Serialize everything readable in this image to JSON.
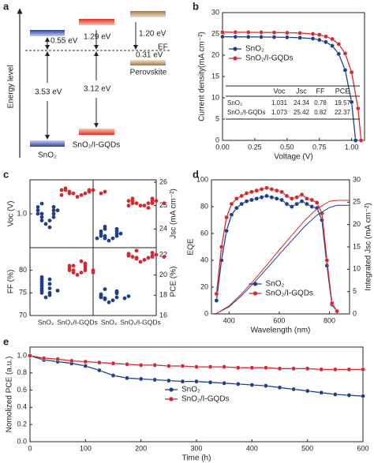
{
  "diagram": {
    "label": "a",
    "ylabel": "Energy level",
    "gap_sno2_cb": "0.55 eV",
    "gap_gqd_cb": "1.29 eV",
    "gap_pvk_cb": "1.20 eV",
    "gap_pvk_vb": "0.31 eV",
    "fermi_label": "EF",
    "bandgap_sno2": "3.53 eV",
    "bandgap_gqd": "3.12 eV",
    "name_sno2": "SnO₂",
    "name_gqd": "SnO₂/I-GQDs",
    "name_pvk": "Perovskite"
  },
  "chart_data": [
    {
      "type": "line",
      "label": "b",
      "xlabel": "Voltage (V)",
      "ylabel": "Current density(mA cm⁻²)",
      "xlim": [
        0,
        1.1
      ],
      "xticks": [
        {
          "value": 0,
          "label": "0.00"
        },
        0.25,
        {
          "value": 0.5,
          "label": "0.50"
        },
        0.75,
        {
          "value": 1,
          "label": "1.00"
        }
      ],
      "ylim": [
        0,
        30
      ],
      "yticks": [
        0,
        5,
        10,
        15,
        20,
        25,
        30
      ],
      "legend": "center left",
      "series": [
        {
          "name": "SnO₂",
          "color": "#1f3f8c",
          "x": [
            0,
            0.1,
            0.2,
            0.3,
            0.4,
            0.5,
            0.6,
            0.7,
            0.75,
            0.8,
            0.85,
            0.9,
            0.95,
            1.0,
            1.031
          ],
          "values": [
            24.34,
            24.32,
            24.3,
            24.28,
            24.25,
            24.2,
            24.1,
            23.9,
            23.6,
            23.1,
            22.2,
            20.3,
            16.5,
            9.0,
            0
          ]
        },
        {
          "name": "SnO₂/I-GQDs",
          "color": "#d42a2f",
          "x": [
            0,
            0.1,
            0.2,
            0.3,
            0.4,
            0.5,
            0.6,
            0.7,
            0.75,
            0.8,
            0.85,
            0.9,
            0.95,
            1.0,
            1.05,
            1.073
          ],
          "values": [
            25.42,
            25.4,
            25.38,
            25.36,
            25.33,
            25.28,
            25.2,
            25.0,
            24.8,
            24.4,
            23.8,
            22.6,
            20.4,
            16.0,
            7.5,
            0
          ]
        }
      ],
      "table": {
        "columns": [
          "Voc",
          "Jsc",
          "FF",
          "PCE"
        ],
        "rows": [
          [
            "SnO₂",
            1.031,
            24.34,
            0.78,
            19.57
          ],
          [
            "SnO₂/I-GQDs",
            1.073,
            25.42,
            0.82,
            22.37
          ]
        ]
      }
    },
    {
      "type": "dot-grid",
      "label": "c",
      "categories": [
        "SnO₂",
        "SnO₂/I-GQDs"
      ],
      "panels": [
        {
          "position": "top left",
          "ylabel": "Voc (V)",
          "ylim": [
            0.9,
            1.1
          ],
          "yticks": [
            {
              "value": 1,
              "label": "1.0"
            }
          ],
          "series": [
            {
              "color": "#1f3f8c",
              "values": [
                0.97,
                0.98,
                0.98,
                0.99,
                0.99,
                1.0,
                1.0,
                1.0,
                1.01,
                1.01,
                1.01,
                1.02,
                1.02,
                1.03,
                0.96
              ]
            },
            {
              "color": "#d42a2f",
              "values": [
                1.05,
                1.055,
                1.06,
                1.06,
                1.06,
                1.065,
                1.065,
                1.07,
                1.07,
                1.07,
                1.07,
                1.075,
                1.06,
                1.055,
                1.065
              ]
            }
          ]
        },
        {
          "position": "top right",
          "ylabel": "Jsc (mA cm⁻²)",
          "ylim": [
            23.2,
            26.1
          ],
          "yticks": [
            24,
            25,
            26
          ],
          "series": [
            {
              "color": "#1f3f8c",
              "values": [
                23.5,
                23.6,
                23.6,
                23.7,
                23.7,
                23.7,
                23.8,
                23.8,
                23.8,
                23.9,
                23.9,
                24.0,
                24.0,
                24.1,
                23.6
              ]
            },
            {
              "color": "#d42a2f",
              "values": [
                25.0,
                25.0,
                25.1,
                25.1,
                25.1,
                25.1,
                25.2,
                25.2,
                25.2,
                25.2,
                25.3,
                25.3,
                25.0,
                24.9,
                25.1
              ]
            }
          ]
        },
        {
          "position": "bottom left",
          "ylabel": "FF (%)",
          "ylim": [
            70,
            85
          ],
          "yticks": [
            70,
            75,
            80
          ],
          "series": [
            {
              "color": "#1f3f8c",
              "values": [
                74,
                74.5,
                75,
                75,
                75.5,
                76,
                76,
                76.5,
                77,
                77,
                77.5,
                78,
                78,
                78.5,
                75.5
              ]
            },
            {
              "color": "#d42a2f",
              "values": [
                79,
                79.5,
                79.5,
                80,
                80,
                80,
                80.5,
                80.5,
                81,
                81,
                81,
                81.5,
                82,
                80,
                79.5
              ]
            }
          ]
        },
        {
          "position": "bottom right",
          "ylabel": "PCE (%)",
          "ylim": [
            16,
            22.7
          ],
          "yticks": [
            16,
            18,
            20,
            22
          ],
          "series": [
            {
              "color": "#1f3f8c",
              "values": [
                17.3,
                17.5,
                17.6,
                17.7,
                17.8,
                17.8,
                17.9,
                18.0,
                18.1,
                18.2,
                18.3,
                18.4,
                18.6,
                17.7,
                17.9
              ]
            },
            {
              "color": "#d42a2f",
              "values": [
                21.3,
                21.5,
                21.6,
                21.7,
                21.7,
                21.8,
                21.8,
                21.9,
                21.9,
                22.0,
                22.0,
                22.1,
                22.2,
                22.4,
                21.8
              ]
            }
          ]
        }
      ]
    },
    {
      "type": "line",
      "label": "d",
      "xlabel": "Wavelength (nm)",
      "ylabel": "EQE",
      "y2label": "Integrated Jsc (mA cm⁻²)",
      "xlim": [
        330,
        880
      ],
      "xticks": [
        400,
        600,
        800
      ],
      "ylim": [
        0,
        100
      ],
      "yticks": [
        0,
        20,
        40,
        60,
        80,
        100
      ],
      "y2lim": [
        0,
        30
      ],
      "y2ticks": [
        0,
        5,
        10,
        15,
        20,
        25,
        30
      ],
      "legend": "lower center",
      "series": [
        {
          "name": "SnO₂",
          "color": "#1f3f8c",
          "x": [
            350,
            370,
            390,
            410,
            430,
            450,
            470,
            490,
            510,
            530,
            550,
            570,
            590,
            610,
            630,
            650,
            670,
            690,
            710,
            730,
            750,
            770,
            790,
            810,
            830
          ],
          "values": [
            10,
            40,
            62,
            74,
            79,
            82,
            84,
            85,
            86,
            87,
            88,
            87,
            86,
            85,
            82,
            80,
            82,
            84,
            82,
            80,
            79,
            70,
            36,
            7,
            2
          ]
        },
        {
          "name": "SnO₂/I-GQDs",
          "color": "#d42a2f",
          "x": [
            350,
            370,
            390,
            410,
            430,
            450,
            470,
            490,
            510,
            530,
            550,
            570,
            590,
            610,
            630,
            650,
            670,
            690,
            710,
            730,
            750,
            770,
            790,
            810,
            830
          ],
          "values": [
            15,
            50,
            72,
            82,
            86,
            88,
            90,
            91,
            92,
            93,
            94,
            93,
            92,
            91,
            88,
            86,
            87,
            89,
            86,
            85,
            83,
            75,
            40,
            8,
            2
          ]
        },
        {
          "color": "#1f3f8c",
          "axis": "y2",
          "markers": false,
          "x": [
            330,
            350,
            400,
            450,
            500,
            550,
            600,
            650,
            700,
            750,
            800,
            830,
            880
          ],
          "values": [
            0,
            0.1,
            1.6,
            4.1,
            7.0,
            10.1,
            13.3,
            16.4,
            19.5,
            22.1,
            23.8,
            24.3,
            24.3
          ]
        },
        {
          "color": "#d42a2f",
          "axis": "y2",
          "markers": false,
          "x": [
            330,
            350,
            400,
            450,
            500,
            550,
            600,
            650,
            700,
            750,
            800,
            830,
            880
          ],
          "values": [
            0,
            0.1,
            1.8,
            4.5,
            7.6,
            10.9,
            14.3,
            17.6,
            20.8,
            23.5,
            25.2,
            25.42,
            25.42
          ]
        }
      ]
    },
    {
      "type": "line",
      "label": "e",
      "xlabel": "Time (h)",
      "ylabel": "Nomolized PCE (a.u.)",
      "xlim": [
        0,
        600
      ],
      "xticks": [
        0,
        100,
        200,
        300,
        400,
        500,
        600
      ],
      "ylim": [
        0,
        1.1
      ],
      "yticks": [
        {
          "value": 0,
          "label": "0.0"
        },
        0.2,
        0.4,
        0.6,
        0.8,
        {
          "value": 1,
          "label": "1.0"
        }
      ],
      "legend": "center",
      "x": [
        0,
        25,
        50,
        75,
        100,
        125,
        150,
        175,
        200,
        225,
        250,
        275,
        300,
        325,
        350,
        375,
        400,
        425,
        450,
        475,
        500,
        525,
        550,
        575,
        600
      ],
      "series": [
        {
          "name": "SnO₂",
          "color": "#1f3f8c",
          "values": [
            1.0,
            0.95,
            0.93,
            0.91,
            0.88,
            0.83,
            0.77,
            0.74,
            0.73,
            0.72,
            0.71,
            0.7,
            0.7,
            0.69,
            0.68,
            0.67,
            0.66,
            0.65,
            0.63,
            0.61,
            0.59,
            0.57,
            0.55,
            0.54,
            0.53
          ]
        },
        {
          "name": "SnO₂/I-GQDs",
          "color": "#d42a2f",
          "values": [
            1.0,
            0.97,
            0.96,
            0.94,
            0.93,
            0.92,
            0.91,
            0.9,
            0.89,
            0.89,
            0.88,
            0.88,
            0.87,
            0.87,
            0.87,
            0.86,
            0.86,
            0.86,
            0.85,
            0.85,
            0.85,
            0.84,
            0.84,
            0.84,
            0.84
          ]
        }
      ]
    }
  ]
}
